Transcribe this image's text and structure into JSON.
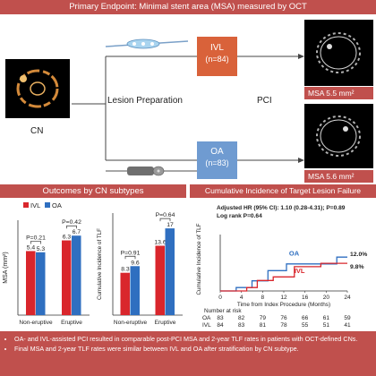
{
  "header": {
    "title": "Primary Endpoint: Minimal stent area (MSA) measured by OCT"
  },
  "flow": {
    "cn_label": "CN",
    "lesion_prep_label": "Lesion Preparation",
    "pci_label": "PCI",
    "ivl_box": {
      "name": "IVL",
      "n": "(n=84)",
      "color": "#d9623a"
    },
    "oa_box": {
      "name": "OA",
      "n": "(n=83)",
      "color": "#6f9bd1"
    },
    "ivl_msa": "MSA 5.5 mm²",
    "oa_msa": "MSA 5.6 mm²"
  },
  "sections": {
    "left_title": "Outcomes by CN subtypes",
    "right_title": "Cumulative Incidence of Target Lesion Failure"
  },
  "colors": {
    "ivl": "#d9262c",
    "oa": "#2f6fc0",
    "accent": "#c0504d"
  },
  "chart_data": [
    {
      "type": "bar",
      "ylabel": "MSA (mm²)",
      "ylim": [
        0,
        8
      ],
      "categories": [
        "Non-eruptive",
        "Eruptive"
      ],
      "legend": [
        "IVL",
        "OA"
      ],
      "series": [
        {
          "name": "IVL",
          "values": [
            5.4,
            6.3
          ]
        },
        {
          "name": "OA",
          "values": [
            5.3,
            6.7
          ]
        }
      ],
      "value_labels": [
        [
          "5.4",
          "5.3"
        ],
        [
          "6.3",
          "6.7"
        ]
      ],
      "pvalues": [
        "P=0.21",
        "P=0.42"
      ]
    },
    {
      "type": "bar",
      "ylabel": "Cumulative Incidence of TLF",
      "ylim": [
        0,
        20
      ],
      "categories": [
        "Non-eruptive",
        "Eruptive"
      ],
      "series": [
        {
          "name": "IVL",
          "values": [
            8.3,
            13.6
          ]
        },
        {
          "name": "OA",
          "values": [
            9.6,
            17
          ]
        }
      ],
      "value_labels": [
        [
          "8.3",
          "9.6"
        ],
        [
          "13.6",
          "17"
        ]
      ],
      "pvalues": [
        "P=0.91",
        "P=0.64"
      ]
    },
    {
      "type": "line",
      "ylabel": "Cumulative Incidence of TLF",
      "xlabel": "Time from Index Procedure (Months)",
      "xlim": [
        0,
        24
      ],
      "ylim": [
        0,
        20
      ],
      "xticks": [
        0,
        4,
        8,
        12,
        16,
        20,
        24
      ],
      "annotations": [
        "Adjusted HR (95% CI): 1.10 (0.28-4.31); P=0.89",
        "Log rank P=0.64"
      ],
      "series": [
        {
          "name": "OA",
          "end_label": "12.0%",
          "x": [
            0,
            3,
            3,
            6,
            6,
            9,
            9,
            12.5,
            12.5,
            22,
            22,
            24
          ],
          "y": [
            0,
            0,
            1.2,
            1.2,
            3.6,
            3.6,
            7.2,
            7.2,
            9.6,
            9.6,
            12.0,
            12.0
          ]
        },
        {
          "name": "IVL",
          "end_label": "9.8%",
          "x": [
            0,
            5,
            5,
            7,
            7,
            10,
            10,
            14,
            14,
            19,
            19,
            24
          ],
          "y": [
            0,
            0,
            1.2,
            1.2,
            3.7,
            3.7,
            5.0,
            5.0,
            8.6,
            8.6,
            9.8,
            9.8
          ]
        }
      ],
      "risk_table": {
        "title": "Number at risk",
        "rows": [
          {
            "label": "OA",
            "values": [
              "83",
              "82",
              "79",
              "76",
              "66",
              "61",
              "59"
            ]
          },
          {
            "label": "IVL",
            "values": [
              "84",
              "83",
              "81",
              "78",
              "55",
              "51",
              "41"
            ]
          }
        ]
      }
    }
  ],
  "conclusions": [
    "OA- and IVL-assisted PCI resulted in comparable post-PCI MSA and 2-year TLF rates in patients with OCT-defined CNs.",
    "Final MSA and 2-year TLF rates were similar between IVL and OA after stratification by CN subtype."
  ]
}
